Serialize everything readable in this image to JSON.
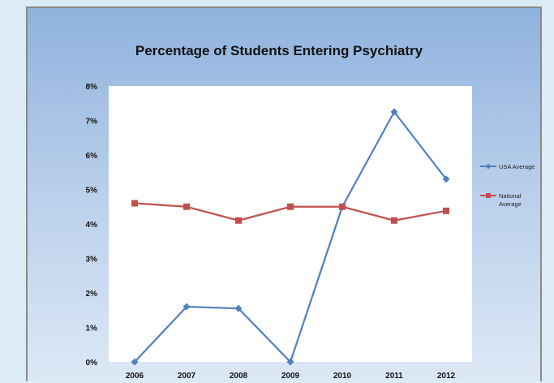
{
  "chart_data": {
    "type": "line",
    "title": "Percentage of Students Entering Psychiatry",
    "xlabel": "",
    "ylabel": "",
    "categories": [
      "2006",
      "2007",
      "2008",
      "2009",
      "2010",
      "2011",
      "2012"
    ],
    "y_ticks": [
      "0%",
      "1%",
      "2%",
      "3%",
      "4%",
      "5%",
      "6%",
      "7%",
      "8%"
    ],
    "ylim": [
      0,
      8
    ],
    "grid": false,
    "legend_position": "right",
    "series": [
      {
        "name": "USA Average",
        "legend_lines": [
          "USA Average"
        ],
        "color": "#4f81bd",
        "marker": "diamond",
        "values": [
          0.0,
          1.6,
          1.55,
          0.0,
          4.5,
          7.25,
          5.3
        ]
      },
      {
        "name": "National Average",
        "legend_lines": [
          "National",
          "Average"
        ],
        "color": "#c0504d",
        "marker": "square",
        "values": [
          4.6,
          4.5,
          4.1,
          4.5,
          4.5,
          4.1,
          4.38
        ]
      }
    ]
  }
}
